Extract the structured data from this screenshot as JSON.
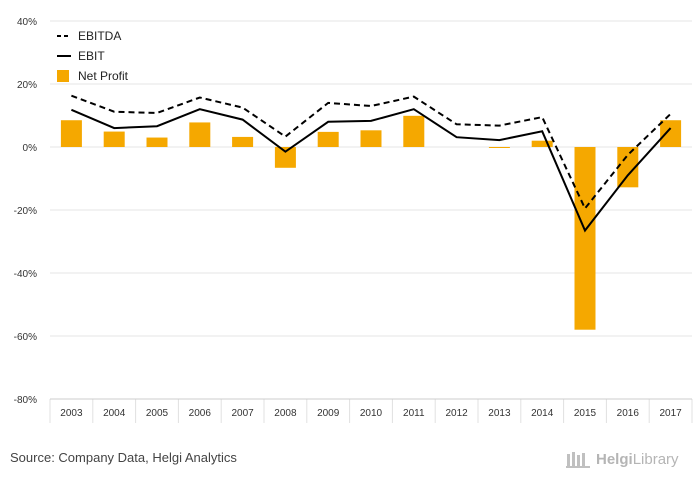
{
  "chart_data": {
    "type": "bar",
    "categories": [
      "2003",
      "2004",
      "2005",
      "2006",
      "2007",
      "2008",
      "2009",
      "2010",
      "2011",
      "2012",
      "2013",
      "2014",
      "2015",
      "2016",
      "2017"
    ],
    "series": [
      {
        "name": "EBITDA",
        "kind": "line",
        "style": "dashed",
        "color": "#000000",
        "values": [
          16.3,
          11.2,
          10.8,
          15.7,
          12.5,
          3.3,
          14.0,
          13.0,
          16.0,
          7.2,
          6.8,
          9.5,
          -19.5,
          -2.5,
          10.5
        ]
      },
      {
        "name": "EBIT",
        "kind": "line",
        "style": "solid",
        "color": "#000000",
        "values": [
          11.8,
          6.0,
          6.6,
          12.0,
          8.7,
          -1.5,
          8.0,
          8.3,
          12.0,
          3.1,
          2.2,
          5.0,
          -26.5,
          -9.0,
          6.0
        ]
      },
      {
        "name": "Net Profit",
        "kind": "bar",
        "color": "#f5a800",
        "values": [
          8.5,
          4.9,
          3.0,
          7.8,
          3.2,
          -6.6,
          4.8,
          5.3,
          9.9,
          0.0,
          -0.3,
          2.0,
          -58.0,
          -12.8,
          8.5
        ]
      }
    ],
    "ylim": [
      -80,
      40
    ],
    "yticks": [
      "40%",
      "20%",
      "0%",
      "-20%",
      "-40%",
      "-60%",
      "-80%"
    ],
    "legend_position": "top-left",
    "grid": true
  },
  "source": "Source: Company Data, Helgi Analytics",
  "logo": {
    "part1": "Helgi",
    "part2": "Library"
  }
}
